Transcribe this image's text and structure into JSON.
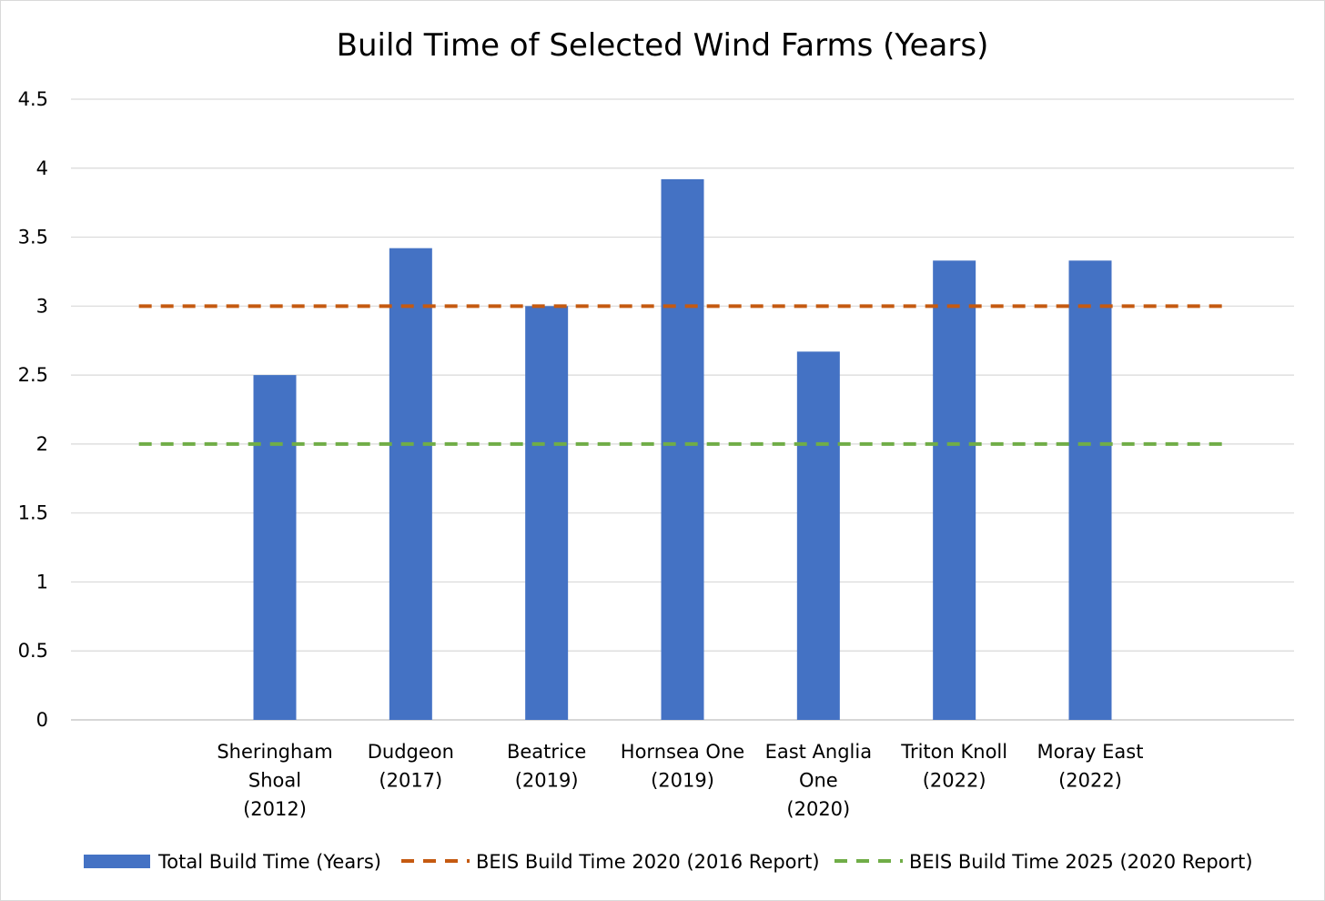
{
  "chart_data": {
    "type": "bar",
    "title": "Build Time of Selected Wind Farms (Years)",
    "xlabel": "",
    "ylabel": "",
    "ylim": [
      0,
      4.5
    ],
    "yticks": [
      "0",
      "0.5",
      "1",
      "1.5",
      "2",
      "2.5",
      "3",
      "3.5",
      "4",
      "4.5"
    ],
    "ytick_values": [
      0,
      0.5,
      1,
      1.5,
      2,
      2.5,
      3,
      3.5,
      4,
      4.5
    ],
    "grid": true,
    "legend_position": "bottom",
    "categories": [
      [
        "Sheringham",
        "Shoal",
        "(2012)"
      ],
      [
        "Dudgeon",
        "(2017)"
      ],
      [
        "Beatrice",
        "(2019)"
      ],
      [
        "Hornsea One",
        "(2019)"
      ],
      [
        "East Anglia",
        "One",
        "(2020)"
      ],
      [
        "Triton Knoll",
        "(2022)"
      ],
      [
        "Moray East",
        "(2022)"
      ]
    ],
    "series": [
      {
        "name": "Total Build Time (Years)",
        "type": "bar",
        "color": "#4472C4",
        "values": [
          2.5,
          3.42,
          3.0,
          3.92,
          2.67,
          3.33,
          3.33
        ]
      },
      {
        "name": "BEIS Build Time 2020 (2016 Report)",
        "type": "dashed-line",
        "color": "#C55A11",
        "value": 3
      },
      {
        "name": "BEIS Build Time 2025 (2020 Report)",
        "type": "dashed-line",
        "color": "#70AD47",
        "value": 2
      }
    ]
  }
}
